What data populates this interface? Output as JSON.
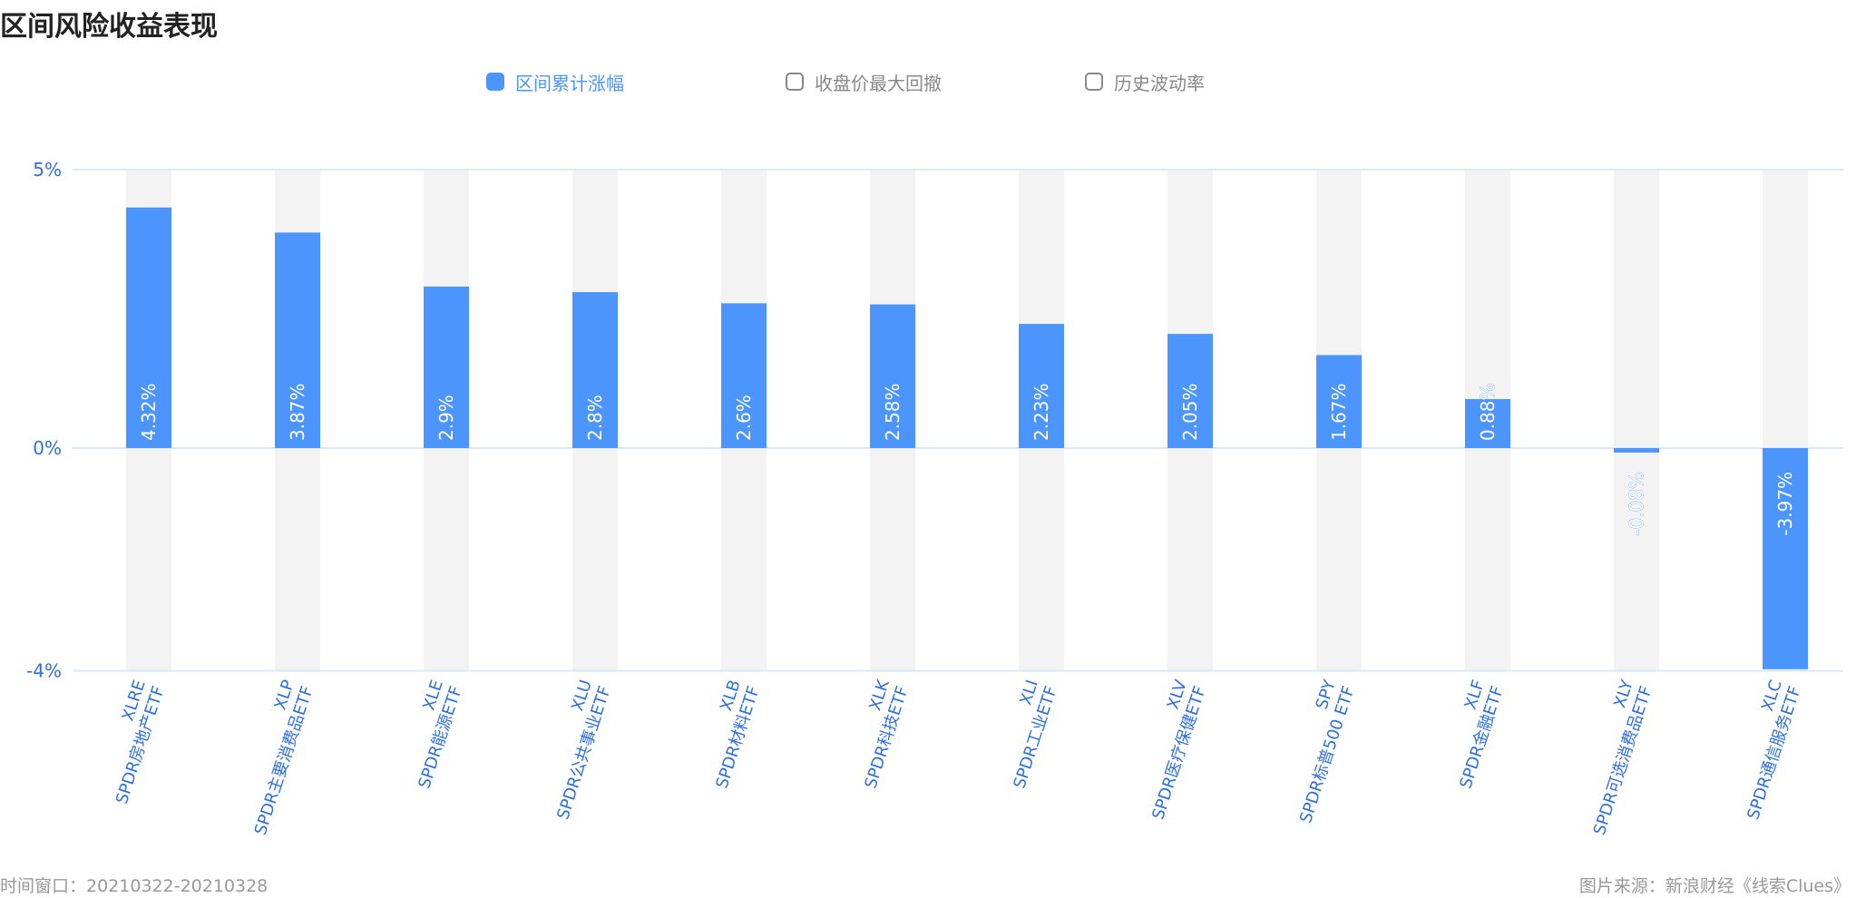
{
  "title": "区间风险收益表现",
  "legend": {
    "items": [
      {
        "label": "区间累计涨幅",
        "active": true
      },
      {
        "label": "收盘价最大回撤",
        "active": false
      },
      {
        "label": "历史波动率",
        "active": false
      }
    ]
  },
  "colors": {
    "bar": "#4b95fd",
    "band": "#f3f3f3",
    "axis_text": "#2f6fe0",
    "grid": "#dce9fb",
    "legend_inactive_text": "#888888",
    "legend_inactive_border": "#888888",
    "title": "#222222",
    "footer": "#999999"
  },
  "chart_data": {
    "type": "bar",
    "title": "区间风险收益表现",
    "xlabel": "",
    "ylabel": "",
    "ylim": [
      -4,
      5
    ],
    "y_ticks": [
      {
        "value": 5,
        "label": "5%"
      },
      {
        "value": 0,
        "label": "0%"
      },
      {
        "value": -4,
        "label": "-4%"
      }
    ],
    "grid": true,
    "legend_placement": "top-center",
    "categories": [
      {
        "code": "XLRE",
        "name": "SPDR房地产ETF"
      },
      {
        "code": "XLP",
        "name": "SPDR主要消费品ETF"
      },
      {
        "code": "XLE",
        "name": "SPDR能源ETF"
      },
      {
        "code": "XLU",
        "name": "SPDR公共事业ETF"
      },
      {
        "code": "XLB",
        "name": "SPDR材料ETF"
      },
      {
        "code": "XLK",
        "name": "SPDR科技ETF"
      },
      {
        "code": "XLI",
        "name": "SPDR工业ETF"
      },
      {
        "code": "XLV",
        "name": "SPDR医疗保健ETF"
      },
      {
        "code": "SPY",
        "name": "SPDR标普500 ETF"
      },
      {
        "code": "XLF",
        "name": "SPDR金融ETF"
      },
      {
        "code": "XLY",
        "name": "SPDR可选消费品ETF"
      },
      {
        "code": "XLC",
        "name": "SPDR通信服务ETF"
      }
    ],
    "series": [
      {
        "name": "区间累计涨幅",
        "values": [
          4.32,
          3.87,
          2.9,
          2.8,
          2.6,
          2.58,
          2.23,
          2.05,
          1.67,
          0.88,
          -0.08,
          -3.97
        ],
        "labels": [
          "4.32%",
          "3.87%",
          "2.9%",
          "2.8%",
          "2.6%",
          "2.58%",
          "2.23%",
          "2.05%",
          "1.67%",
          "0.88%",
          "-0.08%",
          "-3.97%"
        ]
      }
    ]
  },
  "footer": {
    "left": "时间窗口：20210322-20210328",
    "right": "图片来源：新浪财经《线索Clues》"
  }
}
